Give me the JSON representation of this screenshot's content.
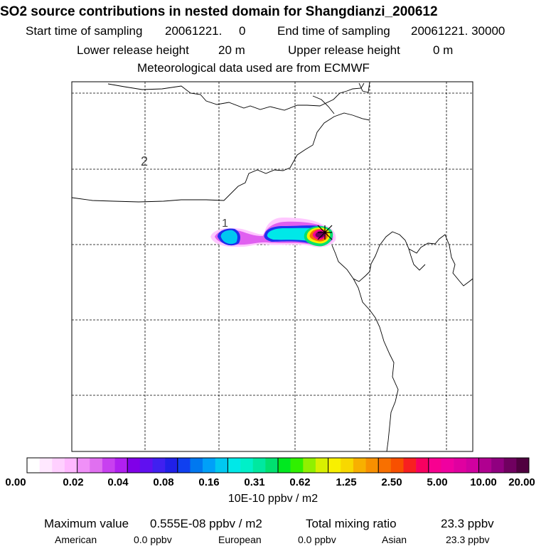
{
  "header": {
    "title": "SO2 source contributions in nested domain for Shangdianzi_200612",
    "start_label": "Start time of sampling",
    "start_value": "20061221.     0",
    "end_label": "End time of sampling",
    "end_value": "20061221. 30000",
    "lower_label": "Lower release height",
    "lower_value": "20 m",
    "upper_label": "Upper release height",
    "upper_value": "0 m",
    "met_text": "Meteorological data used are from ECMWF"
  },
  "map": {
    "contour_labels": [
      "2",
      "1"
    ],
    "receptor_marker": "x-marker"
  },
  "colorbar": {
    "ticks": [
      "0.00",
      "0.02",
      "0.04",
      "0.08",
      "0.16",
      "0.31",
      "0.62",
      "1.25",
      "2.50",
      "5.00",
      "10.00",
      "20.00"
    ],
    "units": "10E-10 ppbv / m2",
    "colors": [
      "#ffffff",
      "#ffe8ff",
      "#ffd0ff",
      "#ffb8ff",
      "#f090f8",
      "#e070f0",
      "#c840f0",
      "#b020f0",
      "#8000e8",
      "#6010f0",
      "#4020f0",
      "#2020e8",
      "#1040f0",
      "#0078f0",
      "#00a0f8",
      "#00c8f0",
      "#00e8e8",
      "#00f0c8",
      "#00e8a0",
      "#00e070",
      "#00e820",
      "#30f000",
      "#90f000",
      "#d8f000",
      "#f8f000",
      "#f8d800",
      "#f8b000",
      "#f89000",
      "#f87000",
      "#f85000",
      "#f82020",
      "#f80060",
      "#f80090",
      "#f000a0",
      "#e000a0",
      "#d000a0",
      "#b00090",
      "#900080",
      "#700060",
      "#500040"
    ]
  },
  "summary": {
    "max_label": "Maximum value",
    "max_value": "0.555E-08 ppbv / m2",
    "total_label": "Total mixing ratio",
    "total_value": "23.3 ppbv",
    "american_label": "American",
    "american_value": "0.0 ppbv",
    "european_label": "European",
    "european_value": "0.0 ppbv",
    "asian_label": "Asian",
    "asian_value": "23.3 ppbv"
  }
}
